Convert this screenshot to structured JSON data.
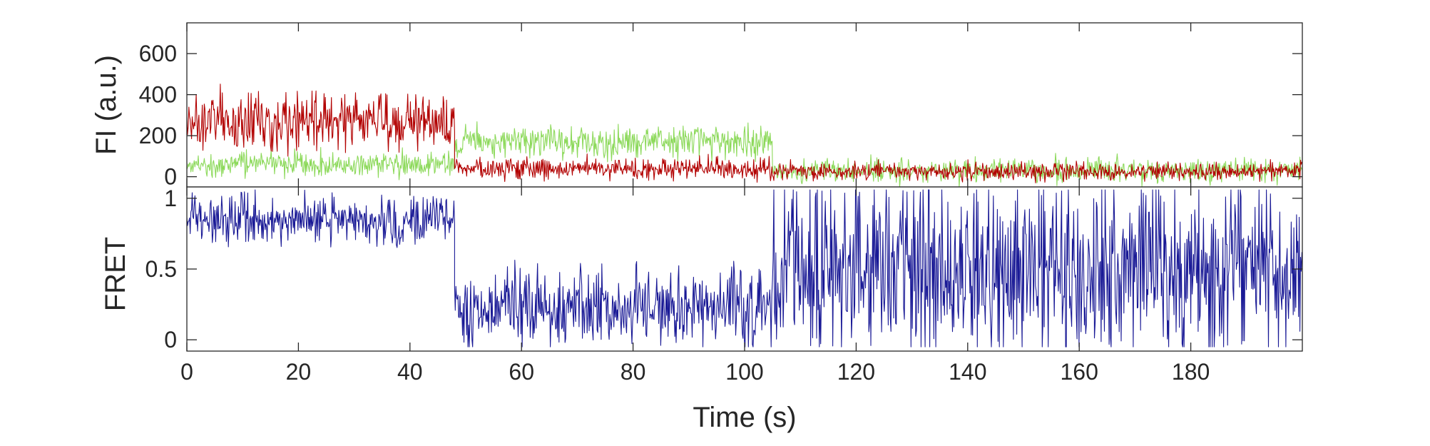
{
  "chart_data": [
    {
      "type": "line",
      "ylabel": "FI (a.u.)",
      "xlim": [
        0,
        200
      ],
      "ylim": [
        -50,
        750
      ],
      "yticks": [
        0,
        200,
        400,
        600
      ],
      "grid": false,
      "series": [
        {
          "color": "#8cd95a",
          "segments": [
            {
              "x": [
                0,
                48
              ],
              "mean": 60,
              "noise": 45
            },
            {
              "x": [
                48,
                49.5
              ],
              "mean": 120,
              "noise": 40
            },
            {
              "x": [
                49.5,
                105
              ],
              "mean": 170,
              "noise": 55
            },
            {
              "x": [
                105,
                200
              ],
              "mean": 30,
              "noise": 40
            }
          ]
        },
        {
          "color": "#b20000",
          "segments": [
            {
              "x": [
                0,
                48
              ],
              "mean": 270,
              "noise": 90
            },
            {
              "x": [
                48,
                105
              ],
              "mean": 40,
              "noise": 35
            },
            {
              "x": [
                105,
                200
              ],
              "mean": 25,
              "noise": 30
            }
          ]
        }
      ]
    },
    {
      "type": "line",
      "ylabel": "FRET",
      "xlabel": "Time (s)",
      "xlim": [
        0,
        200
      ],
      "ylim": [
        -0.08,
        1.08
      ],
      "yticks": [
        0,
        0.5,
        1
      ],
      "xticks": [
        0,
        20,
        40,
        60,
        80,
        100,
        120,
        140,
        160,
        180
      ],
      "grid": false,
      "series": [
        {
          "color": "#1a1a96",
          "segments": [
            {
              "x": [
                0,
                48
              ],
              "mean": 0.85,
              "noise": 0.12
            },
            {
              "x": [
                48,
                105
              ],
              "mean": 0.22,
              "noise": 0.2
            },
            {
              "x": [
                105,
                200
              ],
              "mean": 0.5,
              "noise": 0.45
            }
          ]
        }
      ]
    }
  ]
}
